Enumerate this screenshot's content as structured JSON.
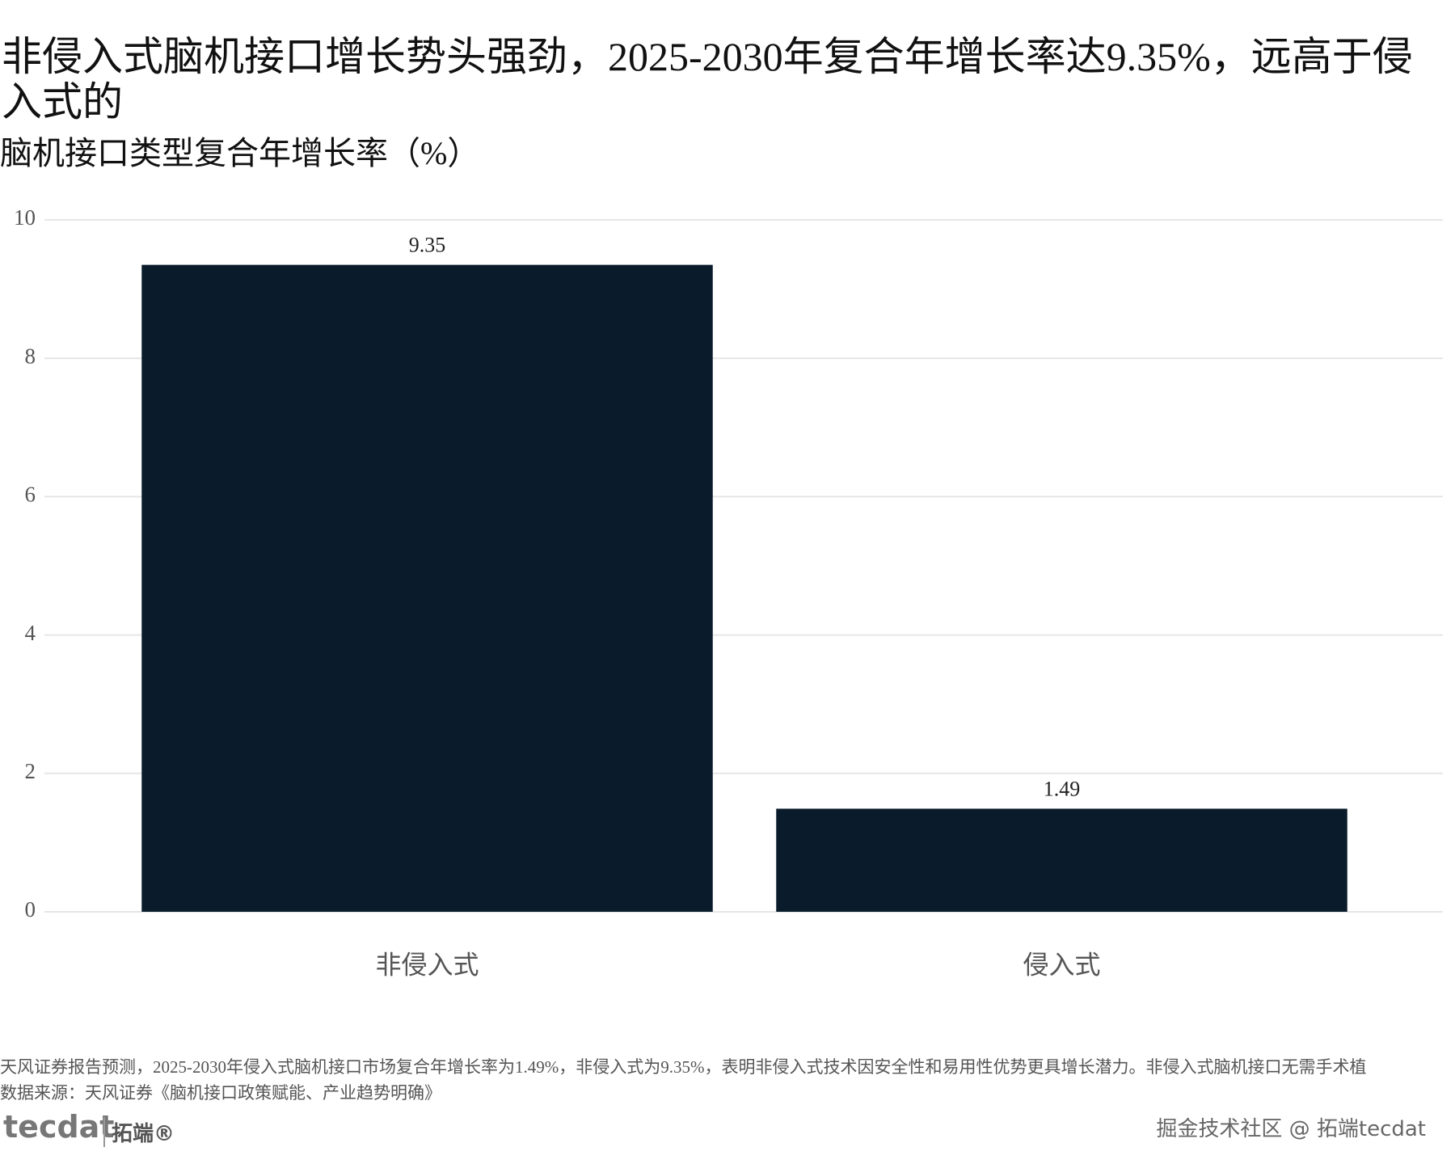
{
  "chart_data": {
    "type": "bar",
    "title": "非侵入式脑机接口增长势头强劲，2025-2030年复合年增长率达9.35%，远高于侵入式的",
    "subtitle": "脑机接口类型复合年增长率（%）",
    "categories": [
      "非侵入式",
      "侵入式"
    ],
    "values": [
      9.35,
      1.49
    ],
    "color": "#0a1c2b",
    "ylim": [
      0,
      10
    ],
    "yticks": [
      0,
      2,
      4,
      6,
      8,
      10
    ],
    "grid": true,
    "caption": "天风证券报告预测，2025-2030年侵入式脑机接口市场复合年增长率为1.49%，非侵入式为9.35%，表明非侵入式技术因安全性和易用性优势更具增长潜力。非侵入式脑机接口无需手术植",
    "source": "数据来源：天风证券《脑机接口政策赋能、产业趋势明确》"
  },
  "logo": {
    "mark": "tecdat",
    "name": "拓端®"
  },
  "watermark": "掘金技术社区 @ 拓端tecdat"
}
